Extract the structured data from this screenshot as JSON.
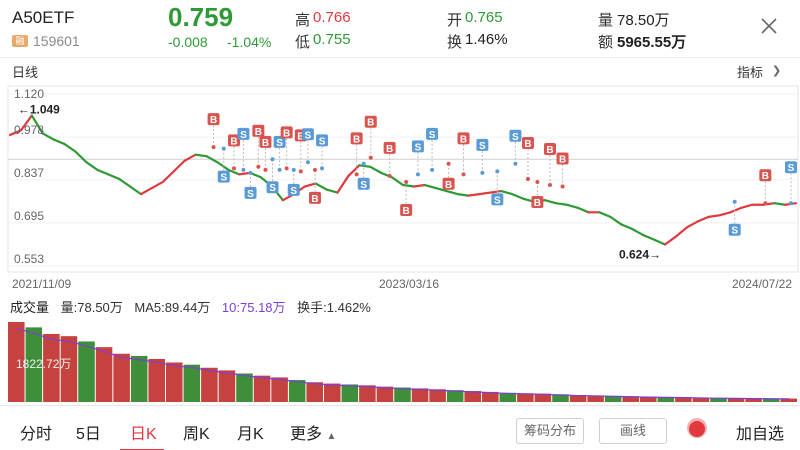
{
  "header": {
    "name": "A50ETF",
    "margin_badge": "融",
    "code": "159601",
    "price": "0.759",
    "change": "-0.008",
    "change_pct": "-1.04%",
    "high_label": "高",
    "high": "0.766",
    "low_label": "低",
    "low": "0.755",
    "open_label": "开",
    "open": "0.765",
    "turnover_label": "换",
    "turnover": "1.46%",
    "volume_label": "量",
    "volume": "78.50万",
    "amount_label": "额",
    "amount": "5965.55万"
  },
  "chart_toolbar": {
    "period_label": "日线",
    "indicator_label": "指标"
  },
  "chart_data": [
    {
      "type": "line",
      "yticks": [
        "1.120",
        "0.978",
        "0.837",
        "0.695",
        "0.553"
      ],
      "ylim": [
        0.553,
        1.12
      ],
      "xticks": [
        "2021/11/09",
        "2023/03/16",
        "2024/07/22"
      ],
      "max_annotation": "1.049",
      "min_annotation": "0.624",
      "reference_line": 0.905,
      "series": [
        {
          "values": [
            0.985,
            1.0,
            1.049,
            0.99,
            0.97,
            0.955,
            0.93,
            0.895,
            0.87,
            0.855,
            0.84,
            0.815,
            0.79,
            0.81,
            0.83,
            0.865,
            0.9,
            0.92,
            0.915,
            0.895,
            0.87,
            0.855,
            0.86,
            0.845,
            0.815,
            0.77,
            0.79,
            0.815,
            0.825,
            0.805,
            0.795,
            0.85,
            0.885,
            0.88,
            0.86,
            0.845,
            0.82,
            0.815,
            0.82,
            0.81,
            0.8,
            0.79,
            0.785,
            0.79,
            0.795,
            0.8,
            0.79,
            0.775,
            0.765,
            0.77,
            0.76,
            0.755,
            0.745,
            0.73,
            0.73,
            0.715,
            0.69,
            0.675,
            0.655,
            0.64,
            0.624,
            0.65,
            0.68,
            0.7,
            0.715,
            0.72,
            0.73,
            0.745,
            0.755,
            0.755,
            0.76,
            0.755,
            0.76
          ]
        }
      ],
      "markers": [
        {
          "x": 0.259,
          "price": 0.945,
          "label": "B"
        },
        {
          "x": 0.272,
          "price": 0.94,
          "label": "S"
        },
        {
          "x": 0.285,
          "price": 0.875,
          "label": "B"
        },
        {
          "x": 0.297,
          "price": 0.87,
          "label": "S"
        },
        {
          "x": 0.306,
          "price": 0.86,
          "label": "S"
        },
        {
          "x": 0.316,
          "price": 0.88,
          "label": "B"
        },
        {
          "x": 0.325,
          "price": 0.87,
          "label": "B"
        },
        {
          "x": 0.334,
          "price": 0.905,
          "label": "S"
        },
        {
          "x": 0.343,
          "price": 0.87,
          "label": "S"
        },
        {
          "x": 0.352,
          "price": 0.875,
          "label": "B"
        },
        {
          "x": 0.361,
          "price": 0.87,
          "label": "S"
        },
        {
          "x": 0.37,
          "price": 0.865,
          "label": "B"
        },
        {
          "x": 0.379,
          "price": 0.895,
          "label": "S"
        },
        {
          "x": 0.388,
          "price": 0.87,
          "label": "B"
        },
        {
          "x": 0.397,
          "price": 0.875,
          "label": "S"
        },
        {
          "x": 0.441,
          "price": 0.855,
          "label": "B"
        },
        {
          "x": 0.45,
          "price": 0.89,
          "label": "S"
        },
        {
          "x": 0.459,
          "price": 0.91,
          "label": "B"
        },
        {
          "x": 0.483,
          "price": 0.85,
          "label": "B"
        },
        {
          "x": 0.504,
          "price": 0.83,
          "label": "B"
        },
        {
          "x": 0.519,
          "price": 0.855,
          "label": "S"
        },
        {
          "x": 0.537,
          "price": 0.87,
          "label": "S"
        },
        {
          "x": 0.558,
          "price": 0.89,
          "label": "B"
        },
        {
          "x": 0.577,
          "price": 0.855,
          "label": "B"
        },
        {
          "x": 0.601,
          "price": 0.86,
          "label": "S"
        },
        {
          "x": 0.62,
          "price": 0.865,
          "label": "S"
        },
        {
          "x": 0.643,
          "price": 0.89,
          "label": "S"
        },
        {
          "x": 0.659,
          "price": 0.84,
          "label": "B"
        },
        {
          "x": 0.671,
          "price": 0.83,
          "label": "B"
        },
        {
          "x": 0.687,
          "price": 0.82,
          "label": "B"
        },
        {
          "x": 0.703,
          "price": 0.815,
          "label": "B"
        },
        {
          "x": 0.922,
          "price": 0.765,
          "label": "S"
        },
        {
          "x": 0.961,
          "price": 0.76,
          "label": "B"
        },
        {
          "x": 1.0,
          "price": 0.76,
          "label": "S"
        }
      ]
    },
    {
      "type": "bar",
      "series_values_desc": "daily volume",
      "ylabel_annotation": "1822.72万",
      "values": [
        1822.72,
        1700,
        1550,
        1500,
        1380,
        1250,
        1100,
        1050,
        980,
        900,
        850,
        780,
        720,
        650,
        600,
        560,
        500,
        450,
        420,
        400,
        380,
        350,
        330,
        310,
        290,
        270,
        250,
        230,
        210,
        200,
        190,
        175,
        160,
        150,
        140,
        130,
        120,
        115,
        110,
        100,
        95,
        90,
        85,
        80,
        78.5
      ]
    }
  ],
  "volume_header": {
    "title": "成交量",
    "vol_label": "量:78.50万",
    "ma5_label": "MA5:89.44万",
    "ma10_label": "10:75.18万",
    "turnover_label": "换手:1.462%"
  },
  "bottom_tabs": {
    "intraday": "分时",
    "five_day": "5日",
    "daily": "日K",
    "weekly": "周K",
    "monthly": "月K",
    "more": "更多",
    "chip_dist": "筹码分布",
    "draw_line": "画线",
    "add_watchlist": "加自选"
  },
  "colors": {
    "up": "#e0393e",
    "down": "#2e9a36",
    "buy_marker": "#d9534f",
    "sell_marker": "#5b9bd5"
  }
}
